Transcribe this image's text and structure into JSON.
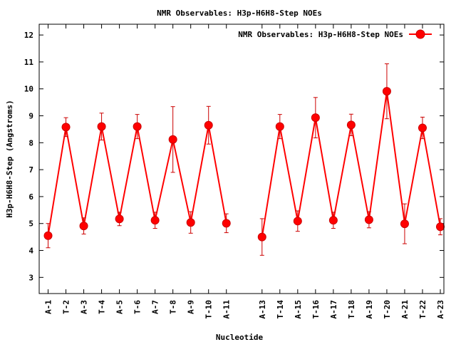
{
  "chart_data": {
    "type": "line",
    "title": "NMR Observables: H3p-H6H8-Step NOEs",
    "xlabel": "Nucleotide",
    "ylabel": "H3p-H6H8-Step (Angstroms)",
    "ylim": [
      2.4,
      12.4
    ],
    "yticks": [
      3,
      4,
      5,
      6,
      7,
      8,
      9,
      10,
      11,
      12
    ],
    "xlim": [
      0.5,
      23.2
    ],
    "grid": false,
    "legend_position": "top-right",
    "colors": {
      "series": "#ff0000",
      "errorbar": "#cc0000",
      "axis": "#000000"
    },
    "categories": [
      "A-1",
      "T-2",
      "A-3",
      "T-4",
      "A-5",
      "T-6",
      "A-7",
      "T-8",
      "A-9",
      "T-10",
      "A-11",
      "A-13",
      "T-14",
      "A-15",
      "T-16",
      "A-17",
      "T-18",
      "A-19",
      "T-20",
      "A-21",
      "T-22",
      "A-23"
    ],
    "series": [
      {
        "name": "NMR Observables: H3p-H6H8-Step NOEs",
        "x": [
          1,
          2,
          3,
          4,
          5,
          6,
          7,
          8,
          9,
          10,
          11,
          13,
          14,
          15,
          16,
          17,
          18,
          19,
          20,
          21,
          22,
          23
        ],
        "values": [
          4.55,
          8.58,
          4.91,
          8.6,
          5.17,
          8.6,
          5.12,
          8.12,
          5.04,
          8.65,
          5.01,
          4.5,
          8.6,
          5.09,
          8.93,
          5.12,
          8.66,
          5.14,
          9.91,
          4.99,
          8.55,
          4.88
        ],
        "errors": [
          0.45,
          0.35,
          0.3,
          0.5,
          0.25,
          0.45,
          0.3,
          1.22,
          0.4,
          0.7,
          0.35,
          0.68,
          0.45,
          0.38,
          0.75,
          0.3,
          0.4,
          0.3,
          1.02,
          0.74,
          0.4,
          0.3
        ],
        "segments": [
          [
            0,
            10
          ],
          [
            11,
            21
          ]
        ]
      }
    ]
  }
}
